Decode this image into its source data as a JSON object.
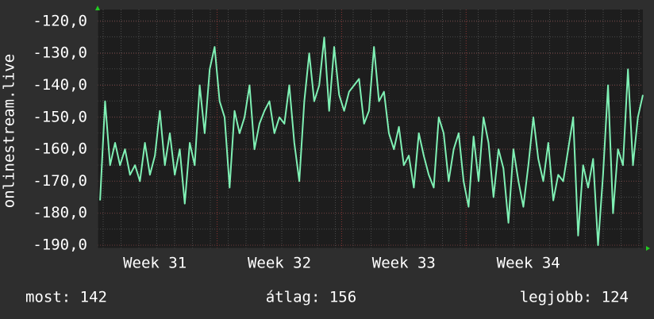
{
  "chart_data": {
    "type": "line",
    "y_label": "onlinestream.live",
    "x": [
      30.56,
      30.6,
      30.64,
      30.68,
      30.72,
      30.76,
      30.8,
      30.84,
      30.88,
      30.92,
      30.96,
      31.0,
      31.04,
      31.08,
      31.12,
      31.16,
      31.2,
      31.24,
      31.28,
      31.32,
      31.36,
      31.4,
      31.44,
      31.48,
      31.52,
      31.56,
      31.6,
      31.64,
      31.68,
      31.72,
      31.76,
      31.8,
      31.84,
      31.88,
      31.92,
      31.96,
      32.0,
      32.04,
      32.08,
      32.12,
      32.16,
      32.2,
      32.24,
      32.28,
      32.32,
      32.36,
      32.4,
      32.44,
      32.48,
      32.52,
      32.56,
      32.6,
      32.64,
      32.68,
      32.72,
      32.76,
      32.8,
      32.84,
      32.88,
      32.92,
      32.96,
      33.0,
      33.04,
      33.08,
      33.12,
      33.16,
      33.2,
      33.24,
      33.28,
      33.32,
      33.36,
      33.4,
      33.44,
      33.48,
      33.52,
      33.56,
      33.6,
      33.64,
      33.68,
      33.72,
      33.76,
      33.8,
      33.84,
      33.88,
      33.92,
      33.96,
      34.0,
      34.04,
      34.08,
      34.12,
      34.16,
      34.2,
      34.24,
      34.28,
      34.32,
      34.36,
      34.4,
      34.44,
      34.48,
      34.52,
      34.56,
      34.6,
      34.64,
      34.68,
      34.72,
      34.76,
      34.8,
      34.84,
      34.88,
      34.92
    ],
    "series": [
      {
        "color": "#7ff0b4",
        "values": [
          -176,
          -145,
          -165,
          -158,
          -165,
          -160,
          -168,
          -165,
          -170,
          -158,
          -168,
          -162,
          -148,
          -165,
          -155,
          -168,
          -160,
          -177,
          -158,
          -165,
          -140,
          -155,
          -135,
          -128,
          -145,
          -150,
          -172,
          -148,
          -155,
          -150,
          -140,
          -160,
          -152,
          -148,
          -145,
          -155,
          -150,
          -152,
          -140,
          -158,
          -170,
          -145,
          -130,
          -145,
          -140,
          -125,
          -148,
          -128,
          -143,
          -148,
          -142,
          -140,
          -138,
          -152,
          -148,
          -128,
          -145,
          -142,
          -155,
          -160,
          -153,
          -165,
          -162,
          -172,
          -155,
          -162,
          -168,
          -172,
          -150,
          -155,
          -170,
          -160,
          -155,
          -170,
          -178,
          -156,
          -170,
          -150,
          -158,
          -175,
          -160,
          -166,
          -183,
          -160,
          -170,
          -178,
          -165,
          -150,
          -163,
          -170,
          -158,
          -176,
          -168,
          -170,
          -160,
          -150,
          -187,
          -165,
          -172,
          -163,
          -190,
          -168,
          -140,
          -180,
          -160,
          -165,
          -135,
          -165,
          -150,
          -143
        ]
      }
    ],
    "xlim": [
      30.54,
      34.92
    ],
    "xticks": [
      {
        "value": 31,
        "label": "Week 31"
      },
      {
        "value": 32,
        "label": "Week 32"
      },
      {
        "value": 33,
        "label": "Week 33"
      },
      {
        "value": 34,
        "label": "Week 34"
      }
    ],
    "ylim": [
      -191,
      -116.3
    ],
    "yticks": [
      {
        "value": -120,
        "label": "-120,0"
      },
      {
        "value": -130,
        "label": "-130,0"
      },
      {
        "value": -140,
        "label": "-140,0"
      },
      {
        "value": -150,
        "label": "-150,0"
      },
      {
        "value": -160,
        "label": "-160,0"
      },
      {
        "value": -170,
        "label": "-170,0"
      },
      {
        "value": -180,
        "label": "-180,0"
      },
      {
        "value": -190,
        "label": "-190,0"
      }
    ],
    "grid": true,
    "footer": [
      "most: 142",
      "átlag: 156",
      "legjobb: 124"
    ]
  }
}
